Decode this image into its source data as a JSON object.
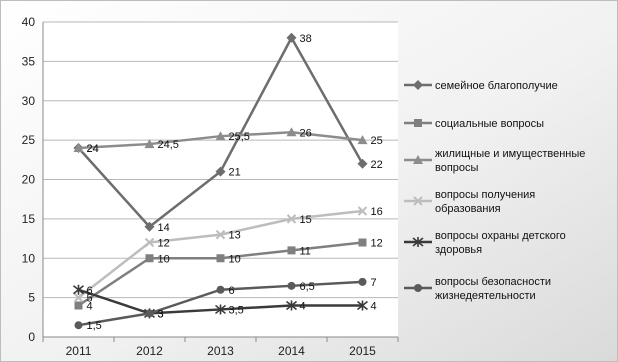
{
  "chart_data": {
    "type": "line",
    "title": "",
    "xlabel": "",
    "ylabel": "",
    "categories": [
      "2011",
      "2012",
      "2013",
      "2014",
      "2015"
    ],
    "ylim": [
      0,
      40
    ],
    "yticks": [
      "0",
      "5",
      "10",
      "15",
      "20",
      "25",
      "30",
      "35",
      "40"
    ],
    "grid": true,
    "legend_position": "right",
    "series": [
      {
        "name": "семейное благополучие",
        "values": [
          24,
          14,
          21,
          38,
          22
        ],
        "labels": [
          "24",
          "14",
          "21",
          "38",
          "22"
        ],
        "color": "#6d6d6d",
        "marker": "diamond"
      },
      {
        "name": "социальные вопросы",
        "values": [
          4,
          10,
          10,
          11,
          12
        ],
        "labels": [
          "4",
          "10",
          "10",
          "11",
          "12"
        ],
        "color": "#7f7f7f",
        "marker": "square"
      },
      {
        "name": "жилищные и имущественные вопросы",
        "values": [
          24,
          24.5,
          25.5,
          26,
          25
        ],
        "labels": [
          "24",
          "24,5",
          "25,5",
          "26",
          "25"
        ],
        "color": "#8c8c8c",
        "marker": "triangle"
      },
      {
        "name": "вопросы получения образования",
        "values": [
          5,
          12,
          13,
          15,
          16
        ],
        "labels": [
          "5",
          "12",
          "13",
          "15",
          "16"
        ],
        "color": "#bdbdbd",
        "marker": "x"
      },
      {
        "name": "вопросы охраны детского здоровья",
        "values": [
          6,
          3,
          3.5,
          4,
          4
        ],
        "labels": [
          "6",
          "3",
          "3,5",
          "4",
          "4"
        ],
        "color": "#3a3a3a",
        "marker": "star"
      },
      {
        "name": "вопросы безопасности жизнедеятельности",
        "values": [
          1.5,
          3,
          6,
          6.5,
          7
        ],
        "labels": [
          "1,5",
          "3",
          "6",
          "6,5",
          "7"
        ],
        "color": "#5a5a5a",
        "marker": "circle"
      }
    ]
  }
}
